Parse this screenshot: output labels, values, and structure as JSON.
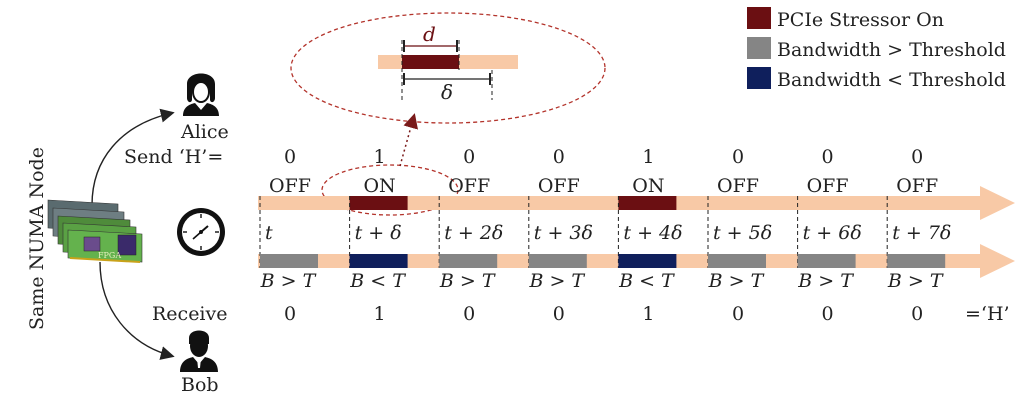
{
  "legend": {
    "items": [
      {
        "label": "PCIe Stressor On",
        "color": "#6b0f12"
      },
      {
        "label": "Bandwidth > Threshold",
        "color": "#858585"
      },
      {
        "label": "Bandwidth < Threshold",
        "color": "#0f1f5c"
      }
    ]
  },
  "side_label": "Same NUMA Node",
  "alice": {
    "name": "Alice",
    "send_label": "Send ‘H’="
  },
  "bob": {
    "name": "Bob",
    "receive_label": "Receive",
    "result_label": "=‘H’"
  },
  "fpga_label": "FPGA",
  "zoom": {
    "d_label": "d",
    "delta_label": "δ"
  },
  "slots": [
    {
      "bit": "0",
      "state": "OFF",
      "time": "t",
      "bw": "B > T",
      "recv": "0"
    },
    {
      "bit": "1",
      "state": "ON",
      "time": "t + δ",
      "bw": "B < T",
      "recv": "1"
    },
    {
      "bit": "0",
      "state": "OFF",
      "time": "t + 2δ",
      "bw": "B > T",
      "recv": "0"
    },
    {
      "bit": "0",
      "state": "OFF",
      "time": "t + 3δ",
      "bw": "B > T",
      "recv": "0"
    },
    {
      "bit": "1",
      "state": "ON",
      "time": "t + 4δ",
      "bw": "B < T",
      "recv": "1"
    },
    {
      "bit": "0",
      "state": "OFF",
      "time": "t + 5δ",
      "bw": "B > T",
      "recv": "0"
    },
    {
      "bit": "0",
      "state": "OFF",
      "time": "t + 6δ",
      "bw": "B > T",
      "recv": "0"
    },
    {
      "bit": "0",
      "state": "OFF",
      "time": "t + 7δ",
      "bw": "B > T",
      "recv": "0"
    }
  ],
  "colors": {
    "track": "#f8c9a6",
    "stressor": "#6b0f12",
    "high": "#858585",
    "low": "#0f1f5c",
    "zoom_ring": "#b3332b"
  }
}
